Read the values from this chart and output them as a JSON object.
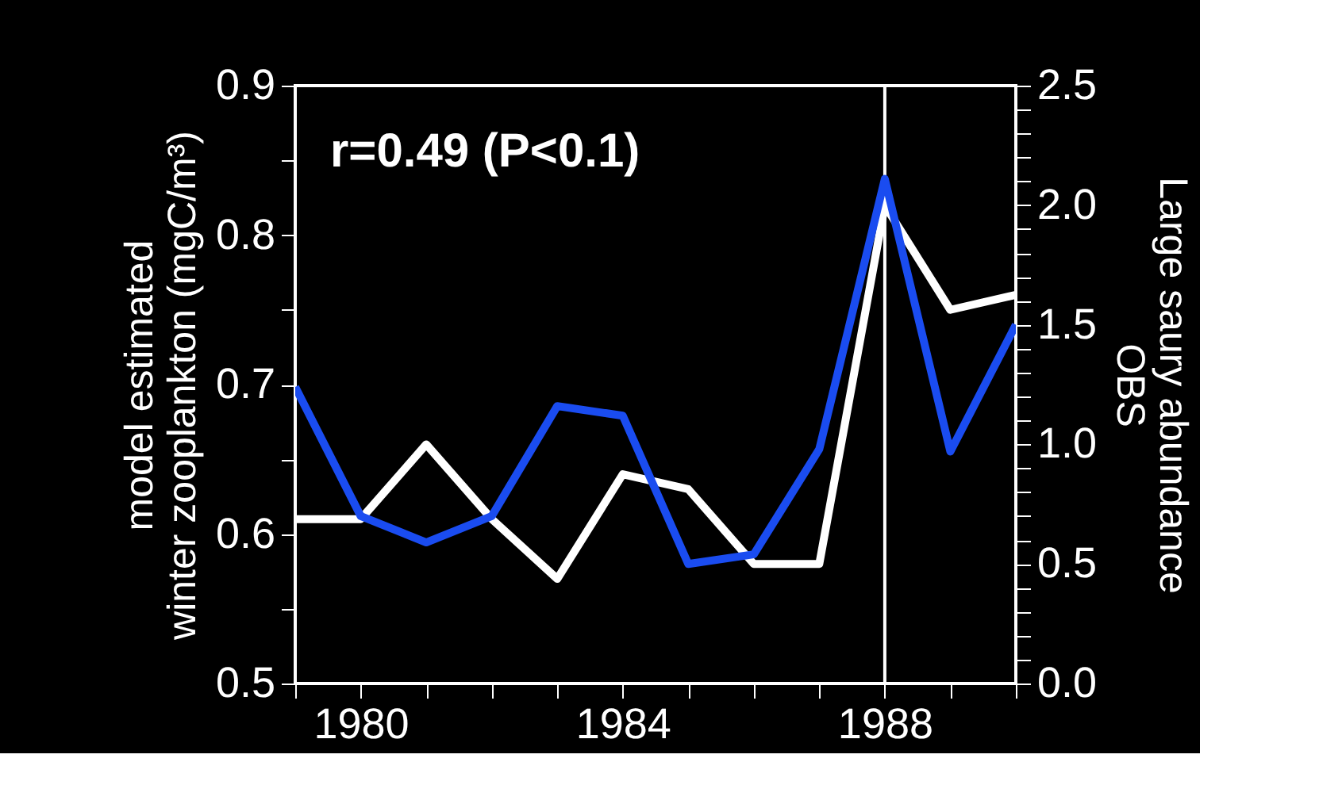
{
  "chart_data": {
    "type": "line",
    "ylabel": "model estimated\nwinter zooplankton (mgC/m³)",
    "y2label": "Large saury abundance\nOBS",
    "annotations": [
      "r=0.49 (P<0.1)"
    ],
    "x": [
      1979,
      1980,
      1981,
      1982,
      1983,
      1984,
      1985,
      1986,
      1987,
      1988,
      1989,
      1990
    ],
    "series": [
      {
        "color": "#ffffff",
        "axis": "y",
        "values": [
          0.61,
          0.61,
          0.66,
          0.61,
          0.57,
          0.64,
          0.63,
          0.58,
          0.58,
          0.82,
          0.75,
          0.76
        ]
      },
      {
        "color": "#1a4cf0",
        "axis": "y2",
        "values": [
          1.24,
          0.7,
          0.59,
          0.7,
          1.16,
          1.12,
          0.5,
          0.54,
          0.98,
          2.11,
          0.97,
          1.5
        ]
      }
    ],
    "xlim": [
      1979,
      1990
    ],
    "xticks": [
      {
        "value": 1979,
        "label": null
      },
      1980,
      {
        "value": 1981,
        "label": null
      },
      {
        "value": 1982,
        "label": null
      },
      {
        "value": 1983,
        "label": null
      },
      1984,
      {
        "value": 1985,
        "label": null
      },
      {
        "value": 1986,
        "label": null
      },
      {
        "value": 1987,
        "label": null
      },
      1988,
      {
        "value": 1989,
        "label": null
      },
      {
        "value": 1990,
        "label": null
      }
    ],
    "ylim": [
      0.5,
      0.9
    ],
    "yticks": [
      0.5,
      {
        "value": 0.55,
        "label": null
      },
      0.6,
      {
        "value": 0.65,
        "label": null
      },
      0.7,
      {
        "value": 0.75,
        "label": null
      },
      0.8,
      {
        "value": 0.85,
        "label": null
      },
      0.9
    ],
    "y2lim": [
      0,
      2.5
    ],
    "y2ticks": [
      {
        "value": 0,
        "label": "0.0"
      },
      {
        "value": 0.1,
        "label": null
      },
      {
        "value": 0.2,
        "label": null
      },
      {
        "value": 0.3,
        "label": null
      },
      {
        "value": 0.4,
        "label": null
      },
      0.5,
      {
        "value": 0.6,
        "label": null
      },
      {
        "value": 0.7,
        "label": null
      },
      {
        "value": 0.8,
        "label": null
      },
      {
        "value": 0.9,
        "label": null
      },
      {
        "value": 1,
        "label": "1.0"
      },
      {
        "value": 1.1,
        "label": null
      },
      {
        "value": 1.2,
        "label": null
      },
      {
        "value": 1.3,
        "label": null
      },
      {
        "value": 1.4,
        "label": null
      },
      1.5,
      {
        "value": 1.6,
        "label": null
      },
      {
        "value": 1.7,
        "label": null
      },
      {
        "value": 1.8,
        "label": null
      },
      {
        "value": 1.9,
        "label": null
      },
      {
        "value": 2,
        "label": "2.0"
      },
      {
        "value": 2.1,
        "label": null
      },
      {
        "value": 2.2,
        "label": null
      },
      {
        "value": 2.3,
        "label": null
      },
      {
        "value": 2.4,
        "label": null
      },
      2.5
    ],
    "ref_lines": [
      {
        "axis": "x",
        "value": 1988,
        "color": "#ffffff"
      }
    ],
    "grid": false,
    "line_style": "solid",
    "marker": "none"
  }
}
